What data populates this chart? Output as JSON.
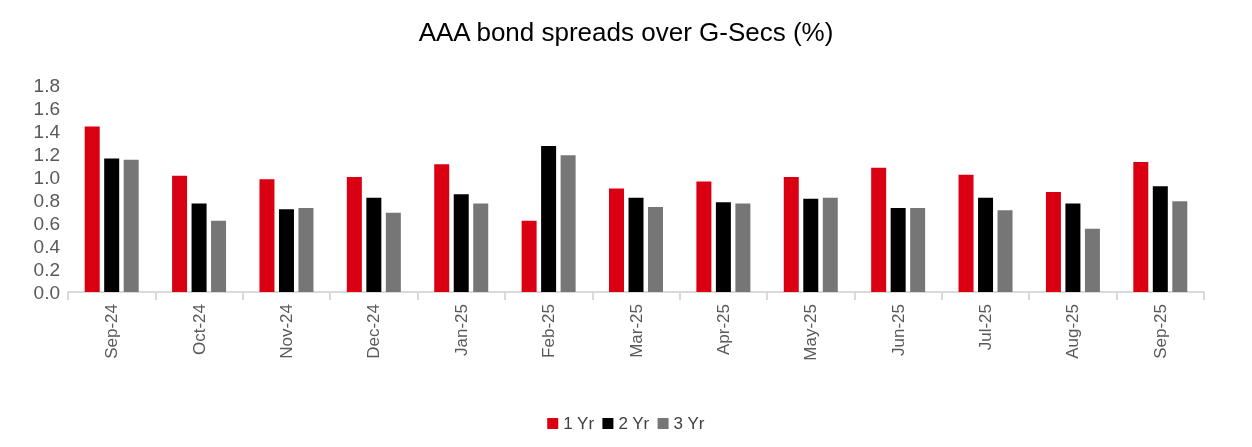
{
  "chart_data": {
    "type": "bar",
    "title": "AAA bond spreads over G-Secs (%)",
    "categories": [
      "Sep-24",
      "Oct-24",
      "Nov-24",
      "Dec-24",
      "Jan-25",
      "Feb-25",
      "Mar-25",
      "Apr-25",
      "May-25",
      "Jun-25",
      "Jul-25",
      "Aug-25",
      "Sep-25"
    ],
    "series": [
      {
        "name": "1 Yr",
        "color": "#da0012",
        "values": [
          1.44,
          1.01,
          0.98,
          1.0,
          1.11,
          0.62,
          0.9,
          0.96,
          1.0,
          1.08,
          1.02,
          0.87,
          1.13
        ]
      },
      {
        "name": "2 Yr",
        "color": "#000000",
        "values": [
          1.16,
          0.77,
          0.72,
          0.82,
          0.85,
          1.27,
          0.82,
          0.78,
          0.81,
          0.73,
          0.82,
          0.77,
          0.92
        ]
      },
      {
        "name": "3 Yr",
        "color": "#767676",
        "values": [
          1.15,
          0.62,
          0.73,
          0.69,
          0.77,
          1.19,
          0.74,
          0.77,
          0.82,
          0.73,
          0.71,
          0.55,
          0.79
        ]
      }
    ],
    "ylim": [
      0,
      1.8
    ],
    "yticks": [
      {
        "value": 0,
        "label": "0.0"
      },
      0.2,
      0.4,
      0.6,
      0.8,
      {
        "value": 1,
        "label": "1.0"
      },
      1.2,
      1.4,
      1.6,
      1.8
    ],
    "grid": false,
    "legend": "bottom"
  }
}
